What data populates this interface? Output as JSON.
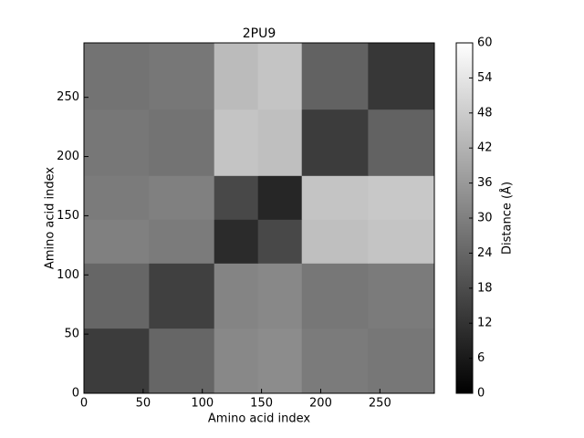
{
  "chart_data": {
    "type": "heatmap",
    "title": "2PU9",
    "x_label": "Amino acid index",
    "y_label": "Amino acid index",
    "colorbar_label": "Distance (Å)",
    "x_bins": [
      0,
      55,
      110,
      147,
      184,
      240,
      296
    ],
    "y_bins": [
      0,
      55,
      110,
      147,
      184,
      240,
      296
    ],
    "values": [
      [
        14,
        24,
        32,
        33,
        29,
        28
      ],
      [
        24,
        15,
        31,
        32,
        28,
        29
      ],
      [
        30,
        29,
        10,
        17,
        45,
        46
      ],
      [
        29,
        30,
        17,
        9,
        46,
        47
      ],
      [
        28,
        27,
        46,
        45,
        14,
        23
      ],
      [
        27,
        28,
        44,
        46,
        23,
        13
      ]
    ],
    "colormap": [
      "#000000",
      "#ffffff"
    ],
    "clim": [
      0,
      60
    ],
    "xlim": [
      0,
      296
    ],
    "ylim": [
      0,
      296
    ],
    "xticks": [
      0,
      50,
      100,
      150,
      200,
      250
    ],
    "yticks": [
      0,
      50,
      100,
      150,
      200,
      250
    ],
    "cticks": [
      0,
      6,
      12,
      18,
      24,
      30,
      36,
      42,
      48,
      54,
      60
    ]
  }
}
